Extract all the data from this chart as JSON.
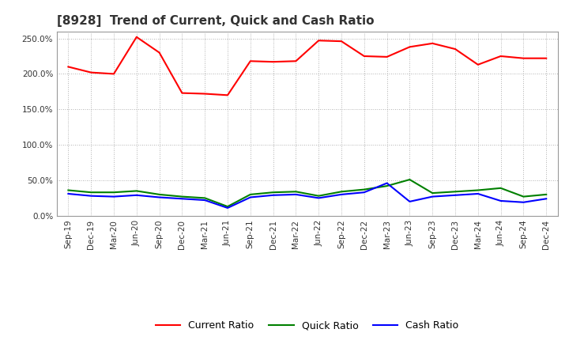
{
  "title": "[8928]  Trend of Current, Quick and Cash Ratio",
  "labels": [
    "Sep-19",
    "Dec-19",
    "Mar-20",
    "Jun-20",
    "Sep-20",
    "Dec-20",
    "Mar-21",
    "Jun-21",
    "Sep-21",
    "Dec-21",
    "Mar-22",
    "Jun-22",
    "Sep-22",
    "Dec-22",
    "Mar-23",
    "Jun-23",
    "Sep-23",
    "Dec-23",
    "Mar-24",
    "Jun-24",
    "Sep-24",
    "Dec-24"
  ],
  "current_ratio": [
    210,
    202,
    200,
    252,
    230,
    173,
    172,
    170,
    218,
    217,
    218,
    247,
    246,
    225,
    224,
    238,
    243,
    235,
    213,
    225,
    222,
    222
  ],
  "quick_ratio": [
    36,
    33,
    33,
    35,
    30,
    27,
    25,
    13,
    30,
    33,
    34,
    28,
    34,
    37,
    42,
    51,
    32,
    34,
    36,
    39,
    27,
    30
  ],
  "cash_ratio": [
    31,
    28,
    27,
    29,
    26,
    24,
    22,
    11,
    26,
    29,
    30,
    25,
    30,
    33,
    46,
    20,
    27,
    29,
    31,
    21,
    19,
    24
  ],
  "current_color": "#FF0000",
  "quick_color": "#008000",
  "cash_color": "#0000FF",
  "background_color": "#FFFFFF",
  "plot_bg_color": "#FFFFFF",
  "grid_color": "#999999",
  "ylim": [
    0,
    260
  ],
  "yticks": [
    0,
    50,
    100,
    150,
    200,
    250
  ],
  "legend_labels": [
    "Current Ratio",
    "Quick Ratio",
    "Cash Ratio"
  ]
}
